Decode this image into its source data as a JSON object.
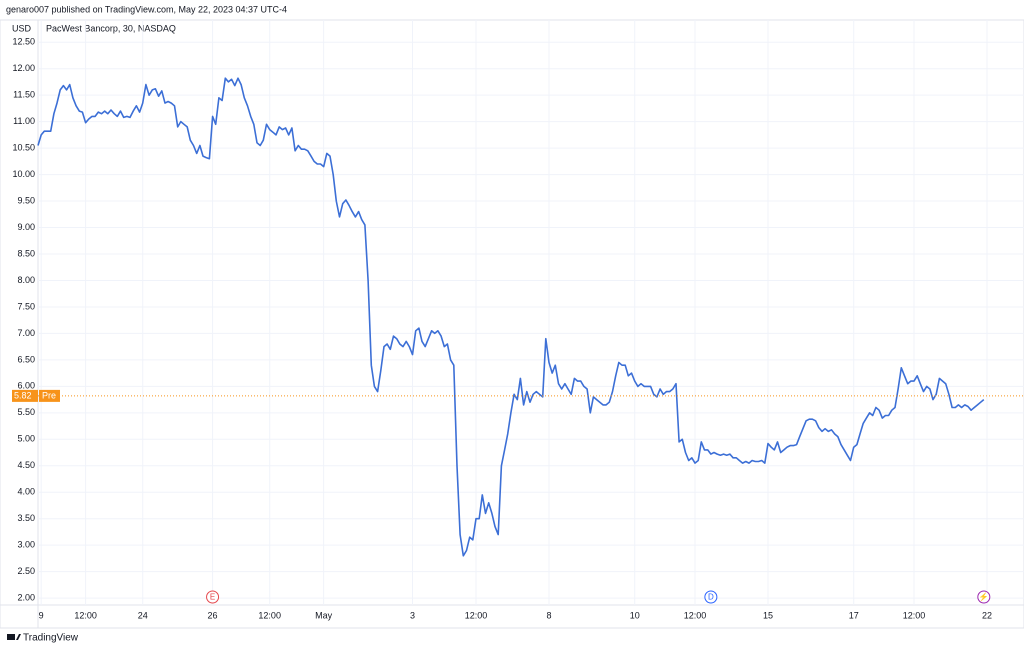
{
  "header": "genaro007 published on TradingView.com, May 22, 2023 04:37 UTC-4",
  "footer": "TradingView",
  "chart_data": {
    "type": "line",
    "title": "PacWest Bancorp, 30, NASDAQ",
    "y_label": "USD",
    "color": "#3c6fd6",
    "grid": true,
    "xlim": [
      0,
      299
    ],
    "ylim": [
      1.87,
      12.92
    ],
    "yticks": [
      {
        "value": 2,
        "label": "2.00"
      },
      {
        "value": 2.5,
        "label": "2.50"
      },
      {
        "value": 3,
        "label": "3.00"
      },
      {
        "value": 3.5,
        "label": "3.50"
      },
      {
        "value": 4,
        "label": "4.00"
      },
      {
        "value": 4.5,
        "label": "4.50"
      },
      {
        "value": 5,
        "label": "5.00"
      },
      {
        "value": 5.5,
        "label": "5.50"
      },
      {
        "value": 6,
        "label": "6.00"
      },
      {
        "value": 6.5,
        "label": "6.50"
      },
      {
        "value": 7,
        "label": "7.00"
      },
      {
        "value": 7.5,
        "label": "7.50"
      },
      {
        "value": 8,
        "label": "8.00"
      },
      {
        "value": 8.5,
        "label": "8.50"
      },
      {
        "value": 9,
        "label": "9.00"
      },
      {
        "value": 9.5,
        "label": "9.50"
      },
      {
        "value": 10,
        "label": "10.00"
      },
      {
        "value": 10.5,
        "label": "10.50"
      },
      {
        "value": 11,
        "label": "11.00"
      },
      {
        "value": 11.5,
        "label": "11.50"
      },
      {
        "value": 12,
        "label": "12.00"
      },
      {
        "value": 12.5,
        "label": "12.50"
      }
    ],
    "xticks": [
      {
        "value": 1,
        "label": "9"
      },
      {
        "value": 15,
        "label": "12:00"
      },
      {
        "value": 33,
        "label": "24"
      },
      {
        "value": 55,
        "label": "26"
      },
      {
        "value": 73,
        "label": "12:00"
      },
      {
        "value": 90,
        "label": "May"
      },
      {
        "value": 118,
        "label": "3"
      },
      {
        "value": 138,
        "label": "12:00"
      },
      {
        "value": 161,
        "label": "8"
      },
      {
        "value": 188,
        "label": "10"
      },
      {
        "value": 207,
        "label": "12:00"
      },
      {
        "value": 230,
        "label": "15"
      },
      {
        "value": 257,
        "label": "17"
      },
      {
        "value": 276,
        "label": "12:00"
      },
      {
        "value": 299,
        "label": "22"
      }
    ],
    "events": [
      {
        "x": 55,
        "label": "E",
        "color": "#e5484d"
      },
      {
        "x": 212,
        "label": "D",
        "color": "#2962ff"
      },
      {
        "x": 298,
        "label": "⚡",
        "color": "#9c27b0"
      }
    ],
    "last_price": {
      "value": 5.82,
      "label": "5.82",
      "tag": "Pre",
      "color": "#f7931a"
    },
    "values": [
      10.55,
      10.75,
      10.82,
      10.82,
      10.82,
      11.15,
      11.35,
      11.6,
      11.68,
      11.6,
      11.7,
      11.45,
      11.3,
      11.2,
      11.18,
      10.98,
      11.05,
      11.1,
      11.1,
      11.18,
      11.15,
      11.2,
      11.15,
      11.22,
      11.15,
      11.1,
      11.2,
      11.08,
      11.1,
      11.08,
      11.2,
      11.3,
      11.18,
      11.35,
      11.7,
      11.5,
      11.6,
      11.62,
      11.48,
      11.58,
      11.35,
      11.38,
      11.35,
      11.3,
      10.9,
      11.0,
      10.95,
      10.9,
      10.65,
      10.55,
      10.4,
      10.55,
      10.35,
      10.32,
      10.3,
      11.1,
      10.95,
      11.45,
      11.4,
      11.82,
      11.75,
      11.8,
      11.68,
      11.82,
      11.7,
      11.45,
      11.3,
      11.1,
      10.95,
      10.6,
      10.55,
      10.65,
      10.95,
      10.85,
      10.8,
      10.75,
      10.9,
      10.85,
      10.88,
      10.75,
      10.88,
      10.45,
      10.55,
      10.48,
      10.48,
      10.45,
      10.35,
      10.25,
      10.2,
      10.2,
      10.15,
      10.4,
      10.35,
      10.0,
      9.5,
      9.2,
      9.45,
      9.52,
      9.42,
      9.3,
      9.2,
      9.3,
      9.15,
      9.05,
      8.0,
      6.4,
      6.0,
      5.9,
      6.3,
      6.75,
      6.8,
      6.7,
      6.95,
      6.9,
      6.8,
      6.75,
      6.85,
      6.75,
      6.6,
      7.05,
      7.1,
      6.85,
      6.75,
      6.9,
      7.05,
      7.0,
      7.05,
      6.95,
      6.75,
      6.8,
      6.5,
      6.4,
      4.5,
      3.2,
      2.8,
      2.9,
      3.15,
      3.1,
      3.5,
      3.5,
      3.95,
      3.6,
      3.8,
      3.6,
      3.35,
      3.2,
      4.5,
      4.8,
      5.1,
      5.5,
      5.85,
      5.75,
      6.15,
      5.65,
      5.9,
      5.7,
      5.85,
      5.9,
      5.85,
      5.8,
      6.9,
      6.45,
      6.25,
      6.4,
      6.05,
      5.95,
      6.05,
      5.95,
      5.85,
      6.15,
      6.1,
      6.1,
      6.0,
      5.95,
      5.5,
      5.8,
      5.75,
      5.7,
      5.65,
      5.65,
      5.7,
      5.9,
      6.2,
      6.45,
      6.4,
      6.4,
      6.2,
      6.25,
      6.1,
      6.0,
      6.05,
      6.0,
      6.0,
      6.0,
      5.85,
      5.8,
      5.95,
      5.85,
      5.9,
      5.9,
      5.95,
      6.05,
      4.95,
      5.0,
      4.75,
      4.6,
      4.65,
      4.55,
      4.6,
      4.95,
      4.8,
      4.8,
      4.72,
      4.75,
      4.72,
      4.7,
      4.72,
      4.7,
      4.72,
      4.65,
      4.65,
      4.6,
      4.55,
      4.58,
      4.55,
      4.6,
      4.58,
      4.58,
      4.6,
      4.55,
      4.92,
      4.85,
      4.8,
      4.95,
      4.75,
      4.8,
      4.85,
      4.88,
      4.88,
      4.9,
      5.05,
      5.2,
      5.35,
      5.38,
      5.38,
      5.35,
      5.22,
      5.15,
      5.2,
      5.15,
      5.18,
      5.1,
      5.05,
      4.9,
      4.8,
      4.7,
      4.6,
      4.85,
      4.9,
      5.1,
      5.3,
      5.4,
      5.5,
      5.45,
      5.6,
      5.55,
      5.4,
      5.45,
      5.45,
      5.55,
      5.6,
      5.95,
      6.35,
      6.2,
      6.05,
      6.1,
      6.1,
      6.2,
      6.05,
      5.9,
      6.0,
      5.95,
      5.75,
      5.85,
      6.15,
      6.1,
      6.05,
      5.85,
      5.6,
      5.6,
      5.65,
      5.6,
      5.65,
      5.62,
      5.55,
      5.6,
      5.65,
      5.7,
      5.75
    ]
  }
}
